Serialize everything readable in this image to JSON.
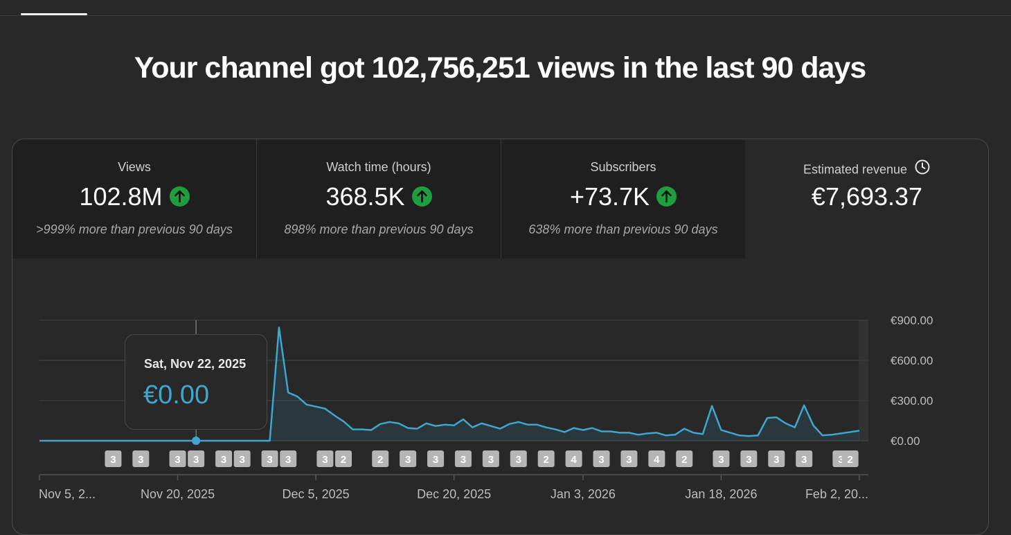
{
  "headline": "Your channel got 102,756,251 views in the last 90 days",
  "metrics": [
    {
      "label": "Views",
      "value": "102.8M",
      "note": ">999% more than previous 90 days"
    },
    {
      "label": "Watch time (hours)",
      "value": "368.5K",
      "note": "898% more than previous 90 days"
    },
    {
      "label": "Subscribers",
      "value": "+73.7K",
      "note": "638% more than previous 90 days"
    },
    {
      "label": "Estimated revenue",
      "value": "€7,693.37"
    }
  ],
  "tooltip": {
    "date": "Sat, Nov 22, 2025",
    "value": "€0.00"
  },
  "colors": {
    "line": "#3ea6cf",
    "up": "#1e9e3e",
    "grid": "#3f3f3f",
    "badge": "#b5b5b5"
  },
  "chart_data": {
    "type": "area",
    "title": "Estimated revenue",
    "ylim": [
      0,
      900
    ],
    "ytick_values": [
      0,
      300,
      600,
      900
    ],
    "ytick_labels": [
      "€0.00",
      "€300.00",
      "€600.00",
      "€900.00"
    ],
    "xtick_labels": [
      "Nov 5, 2...",
      "Nov 20, 2025",
      "Dec 5, 2025",
      "Dec 20, 2025",
      "Jan 3, 2026",
      "Jan 18, 2026",
      "Feb 2, 20..."
    ],
    "xtick_days": [
      0,
      15,
      30,
      45,
      59,
      74,
      89
    ],
    "x_days": [
      0,
      1,
      2,
      3,
      4,
      5,
      6,
      7,
      8,
      9,
      10,
      11,
      12,
      13,
      14,
      15,
      16,
      17,
      18,
      19,
      20,
      21,
      22,
      23,
      24,
      25,
      26,
      27,
      28,
      29,
      30,
      31,
      32,
      33,
      34,
      35,
      36,
      37,
      38,
      39,
      40,
      41,
      42,
      43,
      44,
      45,
      46,
      47,
      48,
      49,
      50,
      51,
      52,
      53,
      54,
      55,
      56,
      57,
      58,
      59,
      60,
      61,
      62,
      63,
      64,
      65,
      66,
      67,
      68,
      69,
      70,
      71,
      72,
      73,
      74,
      75,
      76,
      77,
      78,
      79,
      80,
      81,
      82,
      83,
      84,
      85,
      86,
      87,
      88,
      89
    ],
    "values": [
      0,
      0,
      0,
      0,
      0,
      0,
      0,
      0,
      0,
      0,
      0,
      0,
      0,
      0,
      0,
      0,
      0,
      0,
      0,
      0,
      0,
      0,
      0,
      0,
      0,
      0,
      845,
      360,
      330,
      270,
      255,
      240,
      190,
      145,
      85,
      85,
      80,
      125,
      140,
      130,
      95,
      90,
      130,
      110,
      120,
      115,
      160,
      100,
      130,
      110,
      90,
      125,
      140,
      120,
      120,
      100,
      85,
      65,
      95,
      80,
      95,
      70,
      70,
      60,
      60,
      45,
      55,
      60,
      40,
      45,
      90,
      60,
      50,
      260,
      80,
      60,
      40,
      35,
      40,
      170,
      175,
      130,
      100,
      265,
      115,
      40,
      45,
      55,
      65,
      75
    ],
    "selected_day": 17,
    "annotation_days": [
      8,
      11,
      15,
      17,
      20,
      22,
      25,
      27,
      31,
      33,
      37,
      40,
      43,
      46,
      49,
      52,
      55,
      58,
      61,
      64,
      67,
      70,
      74,
      77,
      80,
      83,
      87,
      88
    ],
    "annotation_labels": [
      "3",
      "3",
      "3",
      "3",
      "3",
      "3",
      "3",
      "3",
      "3",
      "2",
      "2",
      "3",
      "3",
      "3",
      "3",
      "3",
      "2",
      "4",
      "3",
      "3",
      "4",
      "2",
      "3",
      "3",
      "3",
      "3",
      "3",
      "2"
    ]
  }
}
